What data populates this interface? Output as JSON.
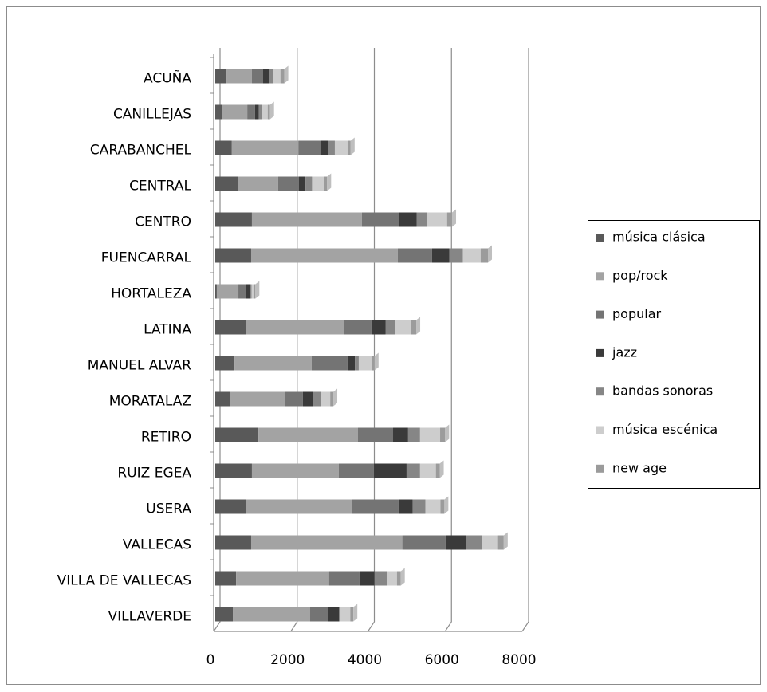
{
  "chart_data": {
    "type": "bar",
    "orientation": "horizontal",
    "stacked": true,
    "categories": [
      "ACUÑA",
      "CANILLEJAS",
      "CARABANCHEL",
      "CENTRAL",
      "CENTRO",
      "FUENCARRAL",
      "HORTALEZA",
      "LATINA",
      "MANUEL ALVAR",
      "MORATALAZ",
      "RETIRO",
      "RUIZ EGEA",
      "USERA",
      "VALLECAS",
      "VILLA DE VALLECAS",
      "VILLAVERDE"
    ],
    "series": [
      {
        "name": "música clásica",
        "color": "#595959",
        "values": [
          290,
          170,
          430,
          580,
          950,
          930,
          40,
          790,
          500,
          390,
          1120,
          950,
          790,
          930,
          540,
          460
        ]
      },
      {
        "name": "pop/rock",
        "color": "#a3a3a3",
        "values": [
          660,
          660,
          1730,
          1050,
          2850,
          3800,
          560,
          2540,
          2000,
          1420,
          2580,
          2250,
          2740,
          3920,
          2410,
          2000
        ]
      },
      {
        "name": "popular",
        "color": "#747474",
        "values": [
          290,
          200,
          580,
          540,
          970,
          890,
          200,
          720,
          930,
          460,
          910,
          910,
          1220,
          1120,
          790,
          460
        ]
      },
      {
        "name": "jazz",
        "color": "#3a3a3a",
        "values": [
          150,
          100,
          190,
          170,
          450,
          450,
          100,
          370,
          190,
          270,
          390,
          850,
          370,
          540,
          390,
          290
        ]
      },
      {
        "name": "bandas sonoras",
        "color": "#868686",
        "values": [
          100,
          80,
          170,
          170,
          270,
          350,
          40,
          250,
          100,
          190,
          310,
          350,
          330,
          410,
          330,
          40
        ]
      },
      {
        "name": "música escénica",
        "color": "#cdcdcd",
        "values": [
          200,
          150,
          330,
          310,
          520,
          460,
          60,
          410,
          330,
          250,
          520,
          410,
          390,
          390,
          250,
          250
        ]
      },
      {
        "name": "new age",
        "color": "#9b9b9b",
        "values": [
          100,
          60,
          80,
          80,
          130,
          190,
          40,
          130,
          80,
          80,
          130,
          100,
          100,
          170,
          100,
          80
        ]
      }
    ],
    "xlim": [
      0,
      8000
    ],
    "xticks": [
      0,
      2000,
      4000,
      6000,
      8000
    ],
    "grid": true,
    "legend": "right"
  }
}
